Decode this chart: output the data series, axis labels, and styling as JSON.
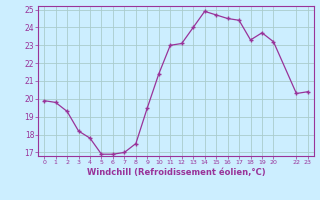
{
  "x": [
    0,
    1,
    2,
    3,
    4,
    5,
    6,
    7,
    8,
    9,
    10,
    11,
    12,
    13,
    14,
    15,
    16,
    17,
    18,
    19,
    20,
    22,
    23
  ],
  "y": [
    19.9,
    19.8,
    19.3,
    18.2,
    17.8,
    16.9,
    16.9,
    17.0,
    17.5,
    19.5,
    21.4,
    23.0,
    23.1,
    24.0,
    24.9,
    24.7,
    24.5,
    24.4,
    23.3,
    23.7,
    23.2,
    20.3,
    20.4
  ],
  "xlim": [
    -0.5,
    23.5
  ],
  "ylim": [
    16.8,
    25.2
  ],
  "yticks": [
    17,
    18,
    19,
    20,
    21,
    22,
    23,
    24,
    25
  ],
  "xticks": [
    0,
    1,
    2,
    3,
    4,
    5,
    6,
    7,
    8,
    9,
    10,
    11,
    12,
    13,
    14,
    15,
    16,
    17,
    18,
    19,
    20,
    22,
    23
  ],
  "xlabel": "Windchill (Refroidissement éolien,°C)",
  "line_color": "#993399",
  "marker": "+",
  "bg_color": "#cceeff",
  "grid_color": "#aacccc",
  "tick_label_color": "#993399",
  "xlabel_color": "#993399",
  "spine_color": "#993399"
}
